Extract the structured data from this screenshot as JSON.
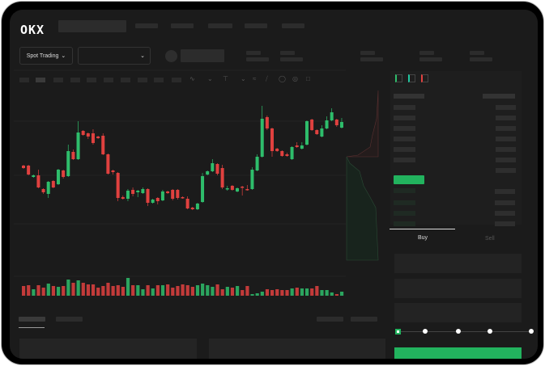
{
  "header": {
    "logo": "OKX",
    "nav_items": 5
  },
  "market_bar": {
    "mode_select": "Spot Trading",
    "pair_select": "",
    "chevron": "chevron-down-icon"
  },
  "toolbar": {
    "icons": [
      "line-tool-icon",
      "ruler-icon",
      "camera-icon",
      "settings-circle-icon",
      "fullscreen-icon"
    ]
  },
  "orderbook": {
    "view_icons": [
      "orderbook-both-icon",
      "orderbook-bids-icon",
      "orderbook-asks-icon"
    ]
  },
  "trade_form": {
    "tabs": [
      "Buy",
      "Sell"
    ],
    "active_tab": "Buy",
    "slider_percent": 0,
    "submit_color": "#22b35e"
  },
  "colors": {
    "up": "#2ebd6b",
    "down": "#e0413f",
    "background": "#1b1b1b"
  },
  "chart_data": {
    "type": "candlestick",
    "title": "",
    "xlabel": "",
    "ylabel": "",
    "grid": true,
    "candles": [
      [
        57,
        54,
        58,
        53
      ],
      [
        57,
        46,
        58,
        45
      ],
      [
        43,
        45,
        46,
        42
      ],
      [
        45,
        30,
        52,
        29
      ],
      [
        28,
        24,
        29,
        22
      ],
      [
        22,
        37,
        38,
        17
      ],
      [
        38,
        30,
        39,
        29
      ],
      [
        34,
        52,
        53,
        33
      ],
      [
        51,
        43,
        52,
        41
      ],
      [
        44,
        75,
        83,
        43
      ],
      [
        74,
        65,
        77,
        64
      ],
      [
        65,
        98,
        112,
        64
      ],
      [
        100,
        95,
        101,
        94
      ],
      [
        97,
        93,
        98,
        90
      ],
      [
        97,
        85,
        102,
        83
      ],
      [
        93,
        91,
        94,
        90
      ],
      [
        94,
        71,
        97,
        70
      ],
      [
        71,
        47,
        72,
        46
      ],
      [
        51,
        49,
        52,
        46
      ],
      [
        48,
        17,
        49,
        13
      ],
      [
        18,
        16,
        20,
        15
      ],
      [
        16,
        26,
        28,
        13
      ],
      [
        27,
        22,
        30,
        19
      ],
      [
        24,
        26,
        27,
        18
      ],
      [
        23,
        28,
        30,
        22
      ],
      [
        28,
        11,
        29,
        7
      ],
      [
        11,
        15,
        16,
        10
      ],
      [
        17,
        13,
        18,
        9
      ],
      [
        14,
        25,
        27,
        13
      ],
      [
        25,
        23,
        26,
        22
      ],
      [
        27,
        16,
        28,
        14
      ],
      [
        27,
        17,
        28,
        15
      ],
      [
        18,
        17,
        19,
        16
      ],
      [
        16,
        4,
        19,
        3
      ],
      [
        5,
        3,
        6,
        2
      ],
      [
        3,
        10,
        11,
        2
      ],
      [
        12,
        44,
        48,
        11
      ],
      [
        46,
        50,
        51,
        45
      ],
      [
        50,
        60,
        65,
        49
      ],
      [
        59,
        47,
        60,
        45
      ],
      [
        54,
        30,
        58,
        28
      ],
      [
        28,
        29,
        32,
        26
      ],
      [
        32,
        27,
        33,
        26
      ],
      [
        25,
        29,
        30,
        24
      ],
      [
        31,
        30,
        32,
        20
      ],
      [
        28,
        27,
        33,
        26
      ],
      [
        28,
        52,
        55,
        27
      ],
      [
        51,
        68,
        71,
        50
      ],
      [
        68,
        115,
        131,
        67
      ],
      [
        117,
        103,
        119,
        101
      ],
      [
        103,
        75,
        104,
        68
      ],
      [
        78,
        75,
        79,
        74
      ],
      [
        75,
        69,
        76,
        68
      ],
      [
        71,
        69,
        73,
        68
      ],
      [
        65,
        80,
        81,
        64
      ],
      [
        82,
        80,
        86,
        79
      ],
      [
        78,
        82,
        86,
        77
      ],
      [
        83,
        112,
        113,
        82
      ],
      [
        114,
        101,
        115,
        100
      ],
      [
        101,
        96,
        102,
        95
      ],
      [
        93,
        103,
        107,
        92
      ],
      [
        103,
        113,
        118,
        102
      ],
      [
        113,
        123,
        128,
        112
      ],
      [
        114,
        107,
        115,
        105
      ],
      [
        104,
        111,
        116,
        103
      ]
    ],
    "candle_fields": [
      "open",
      "close",
      "high",
      "low"
    ],
    "volume": [
      12,
      13,
      8,
      13,
      10,
      15,
      12,
      11,
      12,
      20,
      16,
      19,
      16,
      14,
      14,
      10,
      12,
      16,
      12,
      13,
      11,
      22,
      13,
      13,
      8,
      13,
      9,
      13,
      13,
      14,
      10,
      12,
      14,
      13,
      11,
      13,
      15,
      13,
      11,
      14,
      8,
      11,
      10,
      12,
      7,
      12,
      2,
      3,
      5,
      8,
      7,
      8,
      7,
      7,
      9,
      10,
      9,
      9,
      9,
      12,
      7,
      7,
      4,
      2,
      5
    ]
  }
}
